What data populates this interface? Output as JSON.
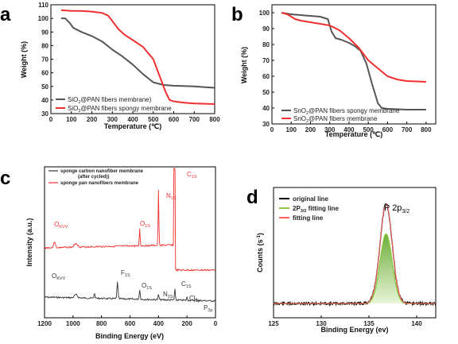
{
  "chart_data": [
    {
      "panel": "a",
      "type": "line",
      "xlabel": "Temperature (℃)",
      "ylabel": "Weight (%)",
      "xlim": [
        0,
        800
      ],
      "ylim": [
        30,
        110
      ],
      "xticks": [
        0,
        100,
        200,
        300,
        400,
        500,
        600,
        700,
        800
      ],
      "yticks": [
        30,
        40,
        50,
        60,
        70,
        80,
        90,
        100,
        110
      ],
      "legend_position": "bottom-left",
      "series": [
        {
          "name": "SiO2@PAN fibers membrane)",
          "name_main": "SiO",
          "name_sub": "2",
          "name_rest": "@PAN fibers membrane)",
          "color": "#555555",
          "x": [
            50,
            70,
            90,
            110,
            150,
            200,
            250,
            300,
            350,
            400,
            450,
            500,
            550,
            600,
            700,
            800
          ],
          "y": [
            100,
            100,
            97,
            93,
            90,
            87,
            83,
            77,
            72,
            66,
            59,
            53,
            51,
            50.5,
            50,
            49
          ]
        },
        {
          "name": "SiO2@PAN fibers spongy membrane",
          "name_main": "SiO",
          "name_sub": "2",
          "name_rest": "@PAN fibers spongy membrane",
          "color": "#f03030",
          "x": [
            50,
            100,
            150,
            200,
            250,
            280,
            300,
            330,
            360,
            400,
            450,
            500,
            530,
            560,
            580,
            600,
            650,
            700,
            800
          ],
          "y": [
            106,
            105.5,
            105.5,
            105,
            104,
            102,
            98,
            92,
            88,
            84,
            79,
            70,
            58,
            46,
            40,
            39,
            38,
            37.5,
            37
          ]
        }
      ]
    },
    {
      "panel": "b",
      "type": "line",
      "xlabel": "Temperature (℃)",
      "ylabel": "Weight (%)",
      "xlim": [
        0,
        850
      ],
      "ylim": [
        30,
        105
      ],
      "xticks": [
        0,
        100,
        200,
        300,
        400,
        500,
        600,
        700,
        800
      ],
      "yticks": [
        30,
        40,
        50,
        60,
        70,
        80,
        90,
        100
      ],
      "legend_position": "bottom-right",
      "series": [
        {
          "name": "SnO2@PAN fibers spongy membrane",
          "name_main": "SnO",
          "name_sub": "2",
          "name_rest": "@PAN fibers spongy membrane",
          "color": "#555555",
          "x": [
            50,
            100,
            150,
            200,
            250,
            290,
            310,
            330,
            360,
            400,
            430,
            460,
            490,
            520,
            550,
            570,
            600,
            700,
            800
          ],
          "y": [
            100,
            99,
            98.5,
            98,
            97.5,
            96,
            88,
            84,
            83,
            81,
            79,
            76,
            68,
            55,
            43,
            40,
            39.5,
            39,
            39
          ]
        },
        {
          "name": "SnO2@PAN fibers membrane",
          "name_main": "SnO",
          "name_sub": "2",
          "name_rest": "@PAN fibers membrane",
          "color": "#f03030",
          "x": [
            50,
            80,
            120,
            150,
            200,
            250,
            300,
            350,
            400,
            450,
            500,
            550,
            600,
            650,
            700,
            800
          ],
          "y": [
            100,
            99,
            96,
            95,
            94,
            93,
            92,
            89,
            84,
            78,
            70,
            65,
            60,
            58,
            57,
            56.5
          ]
        }
      ]
    },
    {
      "panel": "c",
      "type": "line",
      "xlabel": "Binding Energy (eV)",
      "ylabel": "Intensity (a.u.)",
      "xlim": [
        1200,
        0
      ],
      "xticks": [
        1200,
        1000,
        800,
        600,
        400,
        200,
        0
      ],
      "legend_position": "top-left",
      "series": [
        {
          "name_lines": [
            "sponge carbon nanofiber membrane",
            "(after cycled))"
          ],
          "color": "#333333",
          "peaks_labeled": [
            {
              "label": "O",
              "sub": "KVV",
              "x": 980
            },
            {
              "label": "F",
              "sub": "1S",
              "x": 688
            },
            {
              "label": "O",
              "sub": "1S",
              "x": 532
            },
            {
              "label": "N",
              "sub": "1S",
              "x": 400
            },
            {
              "label": "C",
              "sub": "1S",
              "x": 285
            },
            {
              "label": "Cl",
              "sub": "2p",
              "x": 200
            },
            {
              "label": "P",
              "sub": "2p",
              "x": 134
            }
          ]
        },
        {
          "name": "sponge pan nanofibers membrane",
          "color": "#f03030",
          "peaks_labeled": [
            {
              "label": "O",
              "sub": "KVV",
              "x": 980
            },
            {
              "label": "O",
              "sub": "1S",
              "x": 532
            },
            {
              "label": "N",
              "sub": "1S",
              "x": 400
            },
            {
              "label": "C",
              "sub": "1S",
              "x": 285
            }
          ]
        }
      ]
    },
    {
      "panel": "d",
      "type": "line",
      "xlabel": "Binding Energy (ev)",
      "ylabel": "Counts (s⁻¹)",
      "ylabel_main": "Counts (s",
      "ylabel_sup": "-1",
      "ylabel_end": ")",
      "xlim": [
        125,
        142
      ],
      "xticks": [
        125,
        130,
        135,
        140
      ],
      "annotation": {
        "main": "P 2p",
        "sub": "3/2"
      },
      "legend_position": "top-left",
      "series": [
        {
          "name": "original line",
          "color": "#000000"
        },
        {
          "name": "2P3/2 fitting line",
          "name_main": "2P",
          "name_sub": "3/2",
          "name_rest": " fitting line",
          "color": "#8cc63f"
        },
        {
          "name": "fitting line",
          "color": "#ff6060"
        }
      ],
      "peak": {
        "center": 136.8,
        "height": 1.0,
        "fit_height": 0.7,
        "width": 0.9
      }
    }
  ]
}
